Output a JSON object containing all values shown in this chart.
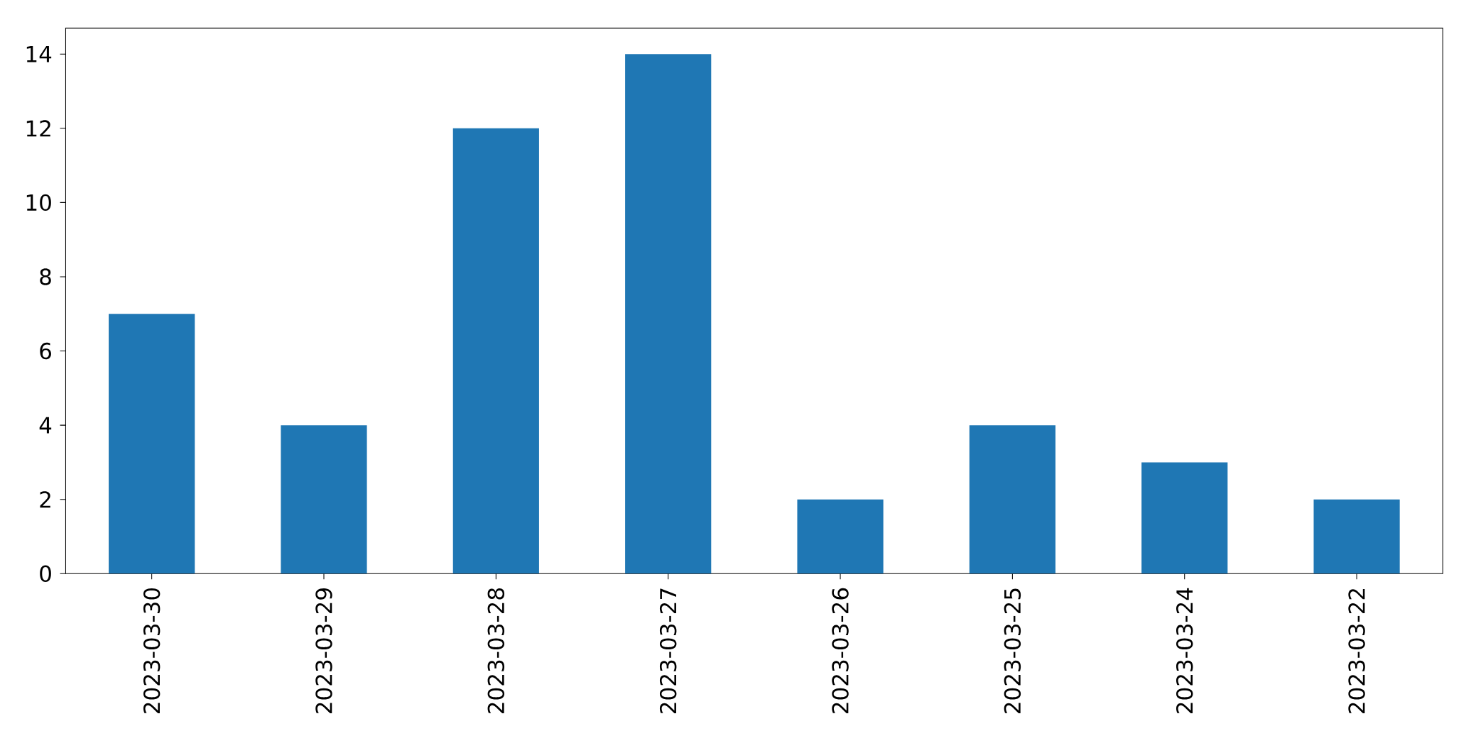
{
  "chart_data": {
    "type": "bar",
    "categories": [
      "2023-03-30",
      "2023-03-29",
      "2023-03-28",
      "2023-03-27",
      "2023-03-26",
      "2023-03-25",
      "2023-03-24",
      "2023-03-22"
    ],
    "values": [
      7,
      4,
      12,
      14,
      2,
      4,
      3,
      2
    ],
    "color": "#1f77b4",
    "ylim": [
      0,
      14.7
    ],
    "yticks": [
      0,
      2,
      4,
      6,
      8,
      10,
      12,
      14
    ],
    "grid": false
  }
}
